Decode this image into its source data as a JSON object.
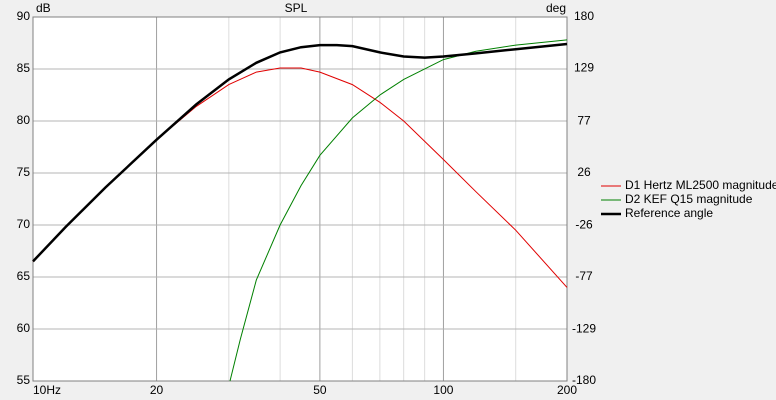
{
  "chart_data": {
    "type": "line",
    "title": "SPL",
    "ylabel": "dB",
    "y2label": "deg",
    "xscale": "log",
    "xlim": [
      10,
      200
    ],
    "xticks": [
      {
        "value": 10,
        "label": "10Hz"
      },
      20,
      50,
      100,
      200
    ],
    "x_minor_ticks": [
      30,
      40,
      60,
      70,
      80,
      90,
      150
    ],
    "ylim": [
      55,
      90
    ],
    "yticks": [
      55,
      60,
      65,
      70,
      75,
      80,
      85,
      90
    ],
    "y2lim": [
      -180,
      180
    ],
    "y2ticks": [
      -180,
      -129,
      -77,
      -26,
      26,
      77,
      129,
      180
    ],
    "grid": true,
    "legend": "right",
    "series": [
      {
        "name": "D1 Hertz ML2500 magnitude",
        "color": "#e00000",
        "width": 1,
        "x": [
          10,
          12,
          15,
          20,
          25,
          30,
          35,
          40,
          45,
          50,
          60,
          70,
          80,
          100,
          120,
          150,
          200
        ],
        "values": [
          66.5,
          69.8,
          73.6,
          78.2,
          81.4,
          83.5,
          84.7,
          85.1,
          85.1,
          84.7,
          83.5,
          81.8,
          80,
          76.3,
          73.2,
          69.5,
          64
        ]
      },
      {
        "name": "D2 KEF Q15 magnitude",
        "color": "#008000",
        "width": 1,
        "x": [
          30.2,
          32,
          35,
          40,
          45,
          50,
          60,
          70,
          80,
          100,
          120,
          150,
          200
        ],
        "values": [
          55,
          59,
          64.7,
          70,
          73.8,
          76.7,
          80.3,
          82.5,
          84,
          85.9,
          86.7,
          87.3,
          87.8
        ]
      },
      {
        "name": "Reference angle",
        "color": "#000000",
        "width": 2.5,
        "x": [
          10,
          12,
          15,
          20,
          25,
          30,
          35,
          40,
          45,
          50,
          55,
          60,
          70,
          80,
          90,
          100,
          120,
          150,
          200
        ],
        "values": [
          66.5,
          69.8,
          73.6,
          78.2,
          81.6,
          84,
          85.6,
          86.6,
          87.1,
          87.3,
          87.3,
          87.2,
          86.6,
          86.2,
          86.1,
          86.2,
          86.5,
          86.9,
          87.4
        ]
      }
    ]
  }
}
